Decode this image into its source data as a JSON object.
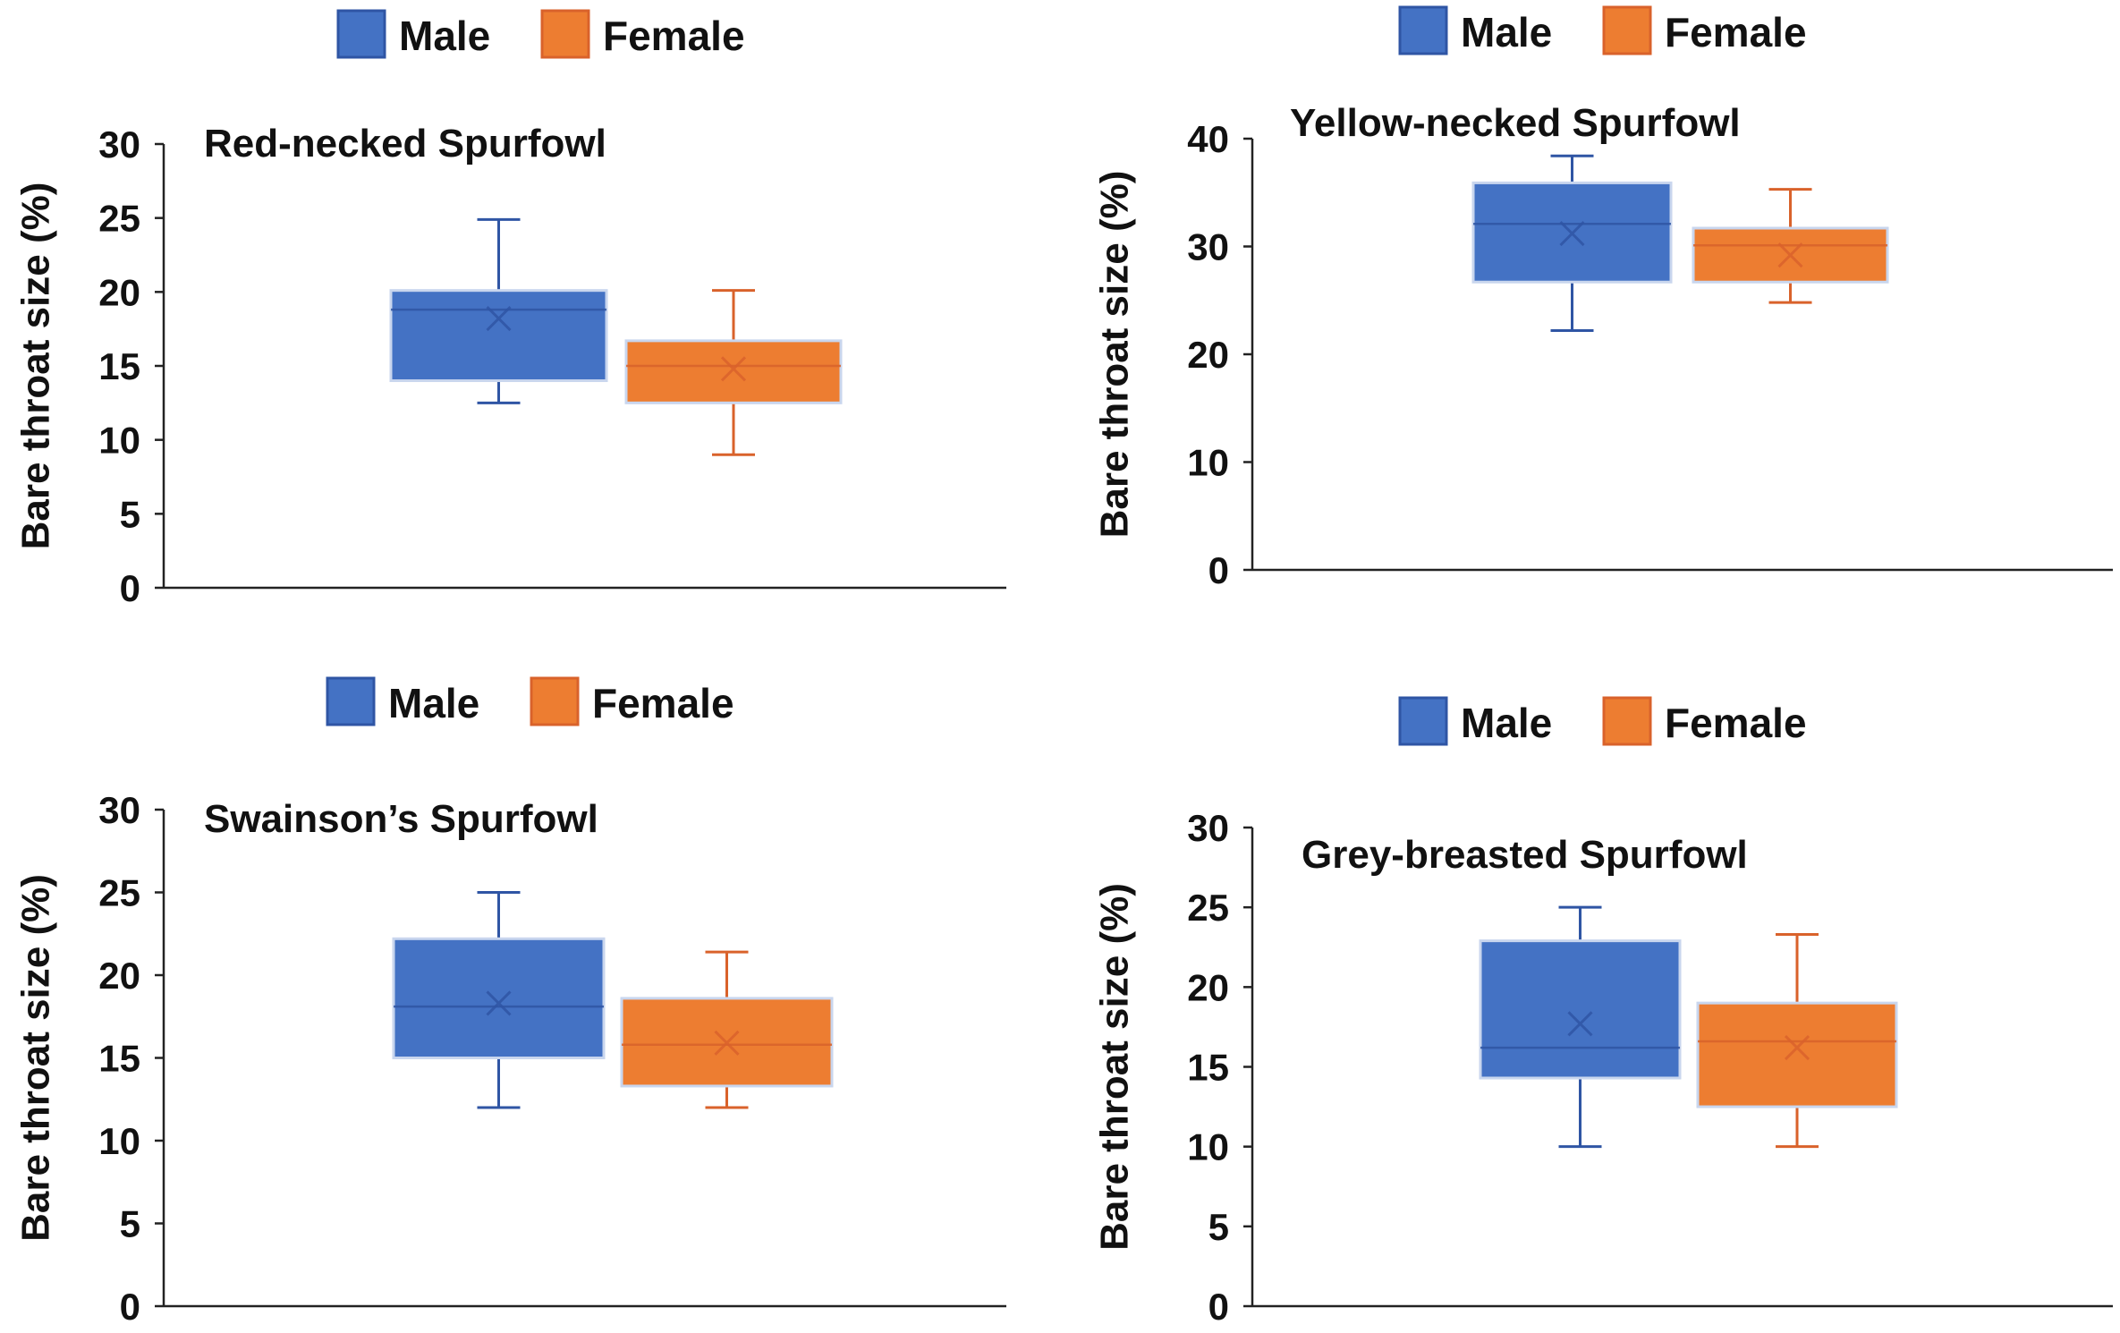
{
  "legend": {
    "male_label": "Male",
    "female_label": "Female"
  },
  "colors": {
    "male_fill": "#4472c4",
    "male_stroke": "#2f55a4",
    "female_fill": "#ed7d31",
    "female_stroke": "#d9622b",
    "axis": "#222222"
  },
  "chart_data": [
    {
      "type": "box",
      "title": "Red-necked Spurfowl",
      "ylabel": "Bare throat size (%)",
      "ylim": [
        0,
        30
      ],
      "yticks": [
        0,
        5,
        10,
        15,
        20,
        25,
        30
      ],
      "series": [
        {
          "name": "Male",
          "min": 12.5,
          "q1": 14,
          "median": 18.8,
          "q3": 20.1,
          "max": 24.9,
          "mean": 18.2
        },
        {
          "name": "Female",
          "min": 9,
          "q1": 12.5,
          "median": 15,
          "q3": 16.7,
          "max": 20.1,
          "mean": 14.8
        }
      ]
    },
    {
      "type": "box",
      "title": "Yellow-necked Spurfowl",
      "ylabel": "Bare throat size (%)",
      "ylim": [
        0,
        40
      ],
      "yticks": [
        0,
        10,
        20,
        30,
        40
      ],
      "series": [
        {
          "name": "Male",
          "min": 22.2,
          "q1": 26.7,
          "median": 32.1,
          "q3": 35.9,
          "max": 38.4,
          "mean": 31.2
        },
        {
          "name": "Female",
          "min": 24.8,
          "q1": 26.7,
          "median": 30.1,
          "q3": 31.7,
          "max": 35.3,
          "mean": 29.2
        }
      ]
    },
    {
      "type": "box",
      "title": "Swainson’s Spurfowl",
      "ylabel": "Bare throat size (%)",
      "ylim": [
        0,
        30
      ],
      "yticks": [
        0,
        5,
        10,
        15,
        20,
        25,
        30
      ],
      "series": [
        {
          "name": "Male",
          "min": 12,
          "q1": 15,
          "median": 18.1,
          "q3": 22.2,
          "max": 25,
          "mean": 18.3
        },
        {
          "name": "Female",
          "min": 12,
          "q1": 13.3,
          "median": 15.8,
          "q3": 18.6,
          "max": 21.4,
          "mean": 15.9
        }
      ]
    },
    {
      "type": "box",
      "title": "Grey-breasted Spurfowl",
      "ylabel": "Bare throat size (%)",
      "ylim": [
        0,
        30
      ],
      "yticks": [
        0,
        5,
        10,
        15,
        20,
        25,
        30
      ],
      "series": [
        {
          "name": "Male",
          "min": 10,
          "q1": 14.3,
          "median": 16.2,
          "q3": 22.9,
          "max": 25,
          "mean": 17.7
        },
        {
          "name": "Female",
          "min": 10,
          "q1": 12.5,
          "median": 16.6,
          "q3": 19,
          "max": 23.3,
          "mean": 16.2
        }
      ]
    }
  ]
}
